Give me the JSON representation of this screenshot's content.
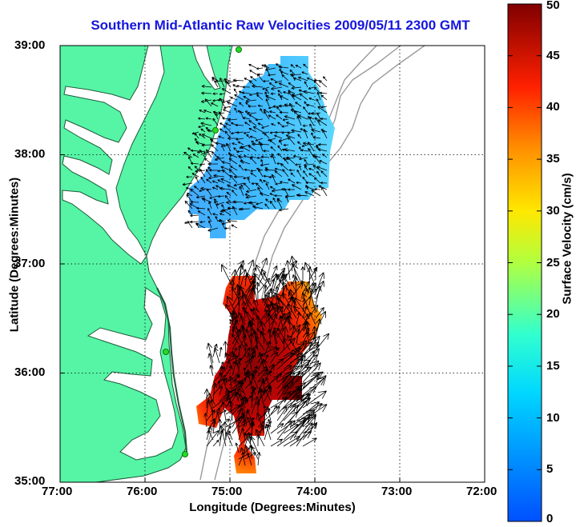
{
  "title": "Southern Mid-Atlantic Raw Velocities 2009/05/11 2300 GMT",
  "axes": {
    "xlabel": "Longitude (Degrees:Minutes)",
    "ylabel": "Latitude (Degrees:Minutes)",
    "x_ticks": [
      "77:00",
      "76:00",
      "75:00",
      "74:00",
      "73:00",
      "72:00"
    ],
    "y_ticks": [
      "39:00",
      "38:00",
      "37:00",
      "36:00",
      "35:00"
    ],
    "x_range_deg_west": [
      77,
      72
    ],
    "y_range_deg_north": [
      35,
      39
    ],
    "grid": "dotted"
  },
  "colorbar": {
    "label": "Surface Velocity (cm/s)",
    "ticks": [
      "50",
      "45",
      "40",
      "35",
      "30",
      "25",
      "20",
      "15",
      "10",
      "5",
      "0"
    ],
    "range": [
      0,
      50
    ],
    "colormap": "jet"
  },
  "colors": {
    "land": "#55f5a5",
    "coast_line": "#1e5a3a",
    "bathymetry": "#9a9a9a",
    "title": "#1515e0",
    "stations": "#22dd22"
  },
  "map_layers": [
    "land",
    "bathymetry-contours",
    "velocity-field",
    "velocity-arrows",
    "radar-stations"
  ]
}
